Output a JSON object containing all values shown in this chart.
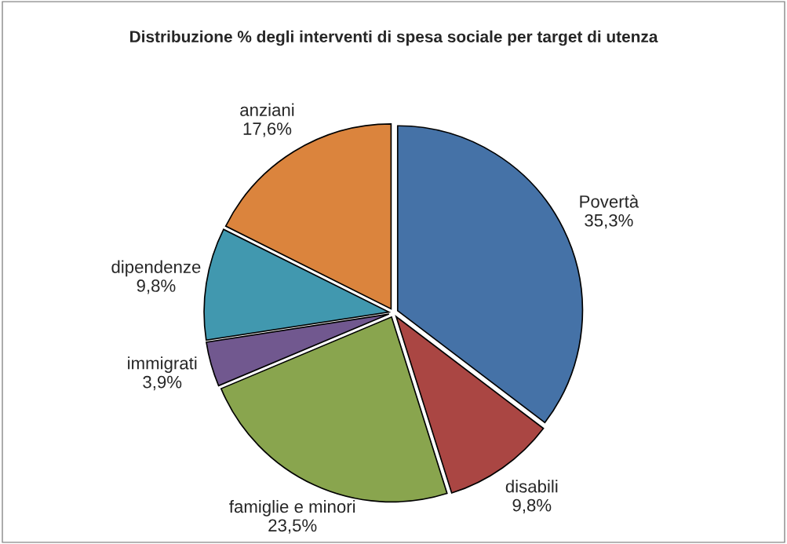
{
  "chart_data": {
    "type": "pie",
    "title": "Distribuzione % degli interventi di spesa sociale per target di utenza",
    "categories": [
      "Povertà",
      "disabili",
      "famiglie e minori",
      "immigrati",
      "dipendenze",
      "anziani"
    ],
    "values": [
      35.3,
      9.8,
      23.5,
      3.9,
      9.8,
      17.6
    ],
    "value_labels": [
      "35,3%",
      "9,8%",
      "23,5%",
      "3,9%",
      "9,8%",
      "17,6%"
    ],
    "colors": [
      "#4572a7",
      "#aa4643",
      "#89a54e",
      "#71588f",
      "#4198af",
      "#db843d"
    ]
  }
}
